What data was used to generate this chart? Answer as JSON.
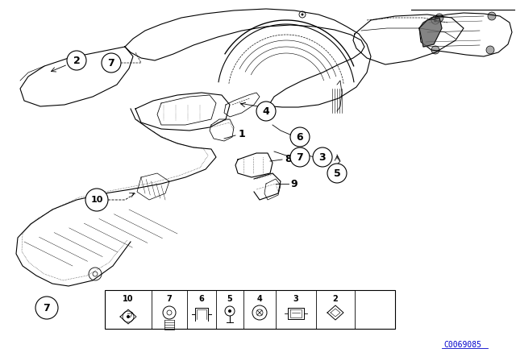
{
  "bg_color": "#ffffff",
  "line_color": "#000000",
  "part_code": "C0069085",
  "fig_w": 6.4,
  "fig_h": 4.48,
  "dpi": 100
}
